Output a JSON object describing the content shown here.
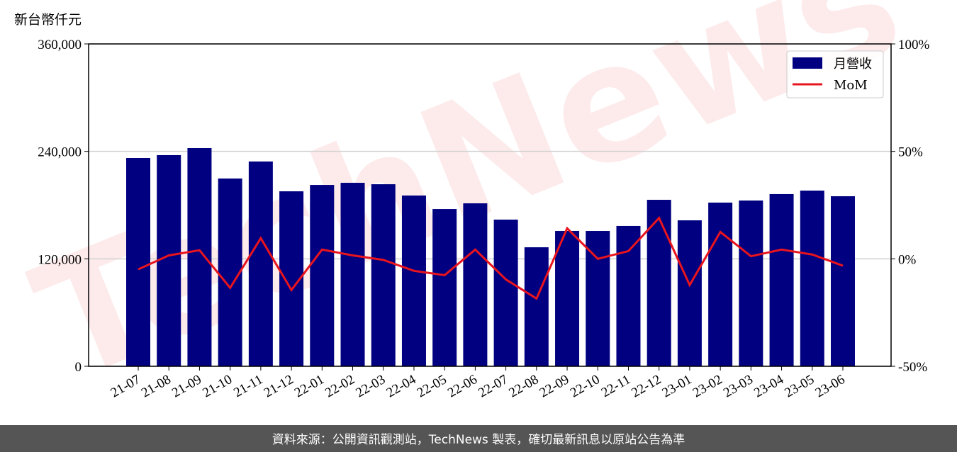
{
  "chart_data": {
    "type": "bar",
    "y_label": "新台幣仟元",
    "watermark": "TechNews",
    "source": "資料來源：公開資訊觀測站，TechNews 製表，確切最新訊息以原站公告為準",
    "categories": [
      "21-07",
      "21-08",
      "21-09",
      "21-10",
      "21-11",
      "21-12",
      "22-01",
      "22-02",
      "22-03",
      "22-04",
      "22-05",
      "22-06",
      "22-07",
      "22-08",
      "22-09",
      "22-10",
      "22-11",
      "22-12",
      "23-01",
      "23-02",
      "23-03",
      "23-04",
      "23-05",
      "23-06"
    ],
    "series": [
      {
        "name": "月營收",
        "color": "#000080",
        "type": "bar",
        "values": [
          232600,
          235800,
          243700,
          209700,
          228700,
          195400,
          202500,
          204900,
          203300,
          190700,
          175600,
          182000,
          163800,
          132900,
          151100,
          151100,
          156700,
          185900,
          163000,
          182800,
          185100,
          192300,
          196200,
          189900
        ]
      },
      {
        "name": "MoM",
        "color": "#e8141e",
        "type": "line",
        "axis": "y2",
        "values": [
          -4.9,
          1.6,
          4.0,
          -13.5,
          9.6,
          -14.5,
          4.3,
          1.6,
          -0.5,
          -5.6,
          -7.6,
          4.3,
          -9.6,
          -18.5,
          14.2,
          0.0,
          3.6,
          19.0,
          -12.2,
          12.5,
          1.2,
          4.3,
          2.0,
          -3.2
        ]
      }
    ],
    "ylim": [
      0,
      360000
    ],
    "yticks": [
      {
        "value": 0,
        "label": "0"
      },
      {
        "value": 120000,
        "label": "120,000"
      },
      {
        "value": 240000,
        "label": "240,000"
      },
      {
        "value": 360000,
        "label": "360,000"
      }
    ],
    "y2lim": [
      -50,
      100
    ],
    "y2ticks": [
      {
        "value": -50,
        "label": "-50%"
      },
      {
        "value": 0,
        "label": "0%"
      },
      {
        "value": 50,
        "label": "50%"
      },
      {
        "value": 100,
        "label": "100%"
      }
    ],
    "grid": true,
    "legend": "upper right"
  }
}
